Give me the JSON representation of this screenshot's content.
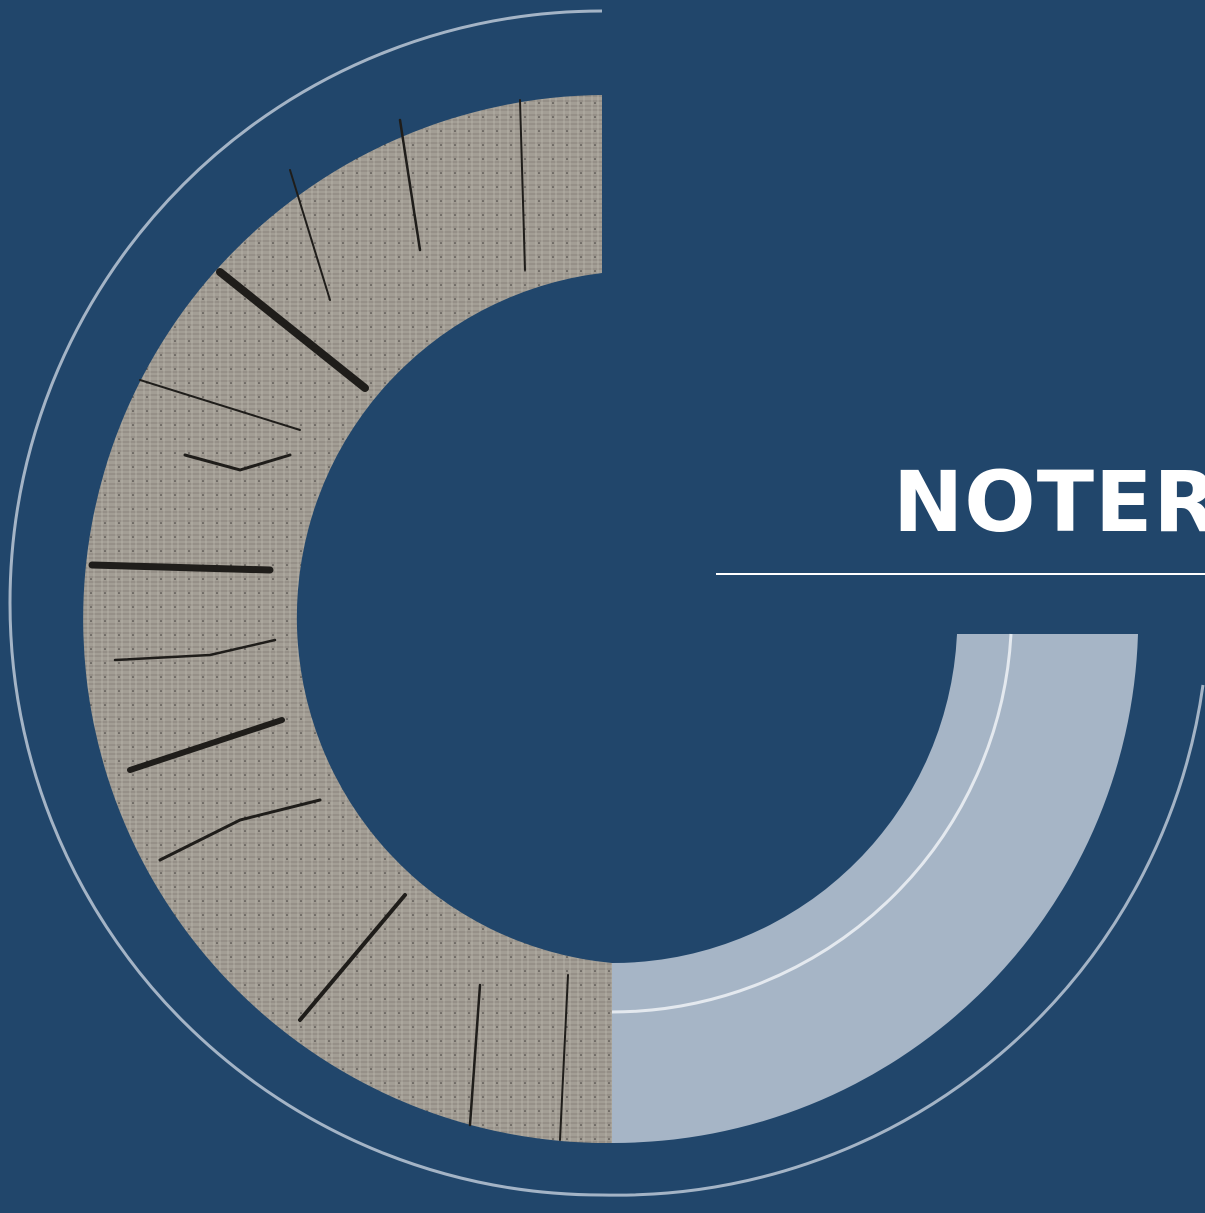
{
  "page": {
    "title": "NOTER"
  },
  "colors": {
    "background": "#21466b",
    "outer_ring": "#a4b4c6",
    "light_band": "#a6b5c6",
    "wood_base": "#a39e95",
    "wood_crack": "#1f1d1a",
    "title_text": "#ffffff",
    "rule": "#ffffff"
  }
}
